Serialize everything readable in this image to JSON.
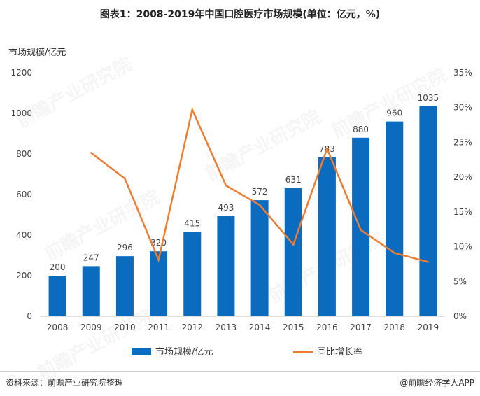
{
  "title": "图表1：2008-2019年中国口腔医疗市场规模(单位：亿元，%)",
  "watermark": "前瞻产业研究院",
  "footer": {
    "source": "资料来源：前瞻产业研究院整理",
    "brand": "@前瞻经济学人APP"
  },
  "colors": {
    "bar": "#0a6bbf",
    "line": "#ed7d31",
    "axis": "#bfbfbf"
  },
  "chart_data": {
    "type": "bar",
    "categories": [
      "2008",
      "2009",
      "2010",
      "2011",
      "2012",
      "2013",
      "2014",
      "2015",
      "2016",
      "2017",
      "2018",
      "2019"
    ],
    "ylabel": "市场规模/亿元",
    "ylim": [
      0,
      1200
    ],
    "yticks": [
      "0",
      "200",
      "400",
      "600",
      "800",
      "1000",
      "1200"
    ],
    "y2lim": [
      0,
      35
    ],
    "y2ticks": [
      "0%",
      "5%",
      "10%",
      "15%",
      "20%",
      "25%",
      "30%",
      "35%"
    ],
    "grid": false,
    "legend_position": "bottom",
    "series": [
      {
        "name": "市场规模/亿元",
        "type": "bar",
        "axis": "left",
        "values": [
          200,
          247,
          296,
          320,
          415,
          493,
          572,
          631,
          783,
          880,
          960,
          1035
        ],
        "labels": [
          "200",
          "247",
          "296",
          "320",
          "415",
          "493",
          "572",
          "631",
          "783",
          "880",
          "960",
          "1035"
        ]
      },
      {
        "name": "同比增长率",
        "type": "line",
        "axis": "right",
        "values": [
          null,
          23.5,
          19.8,
          8.1,
          29.7,
          18.8,
          16.0,
          10.3,
          24.1,
          12.4,
          9.1,
          7.8
        ]
      }
    ]
  }
}
